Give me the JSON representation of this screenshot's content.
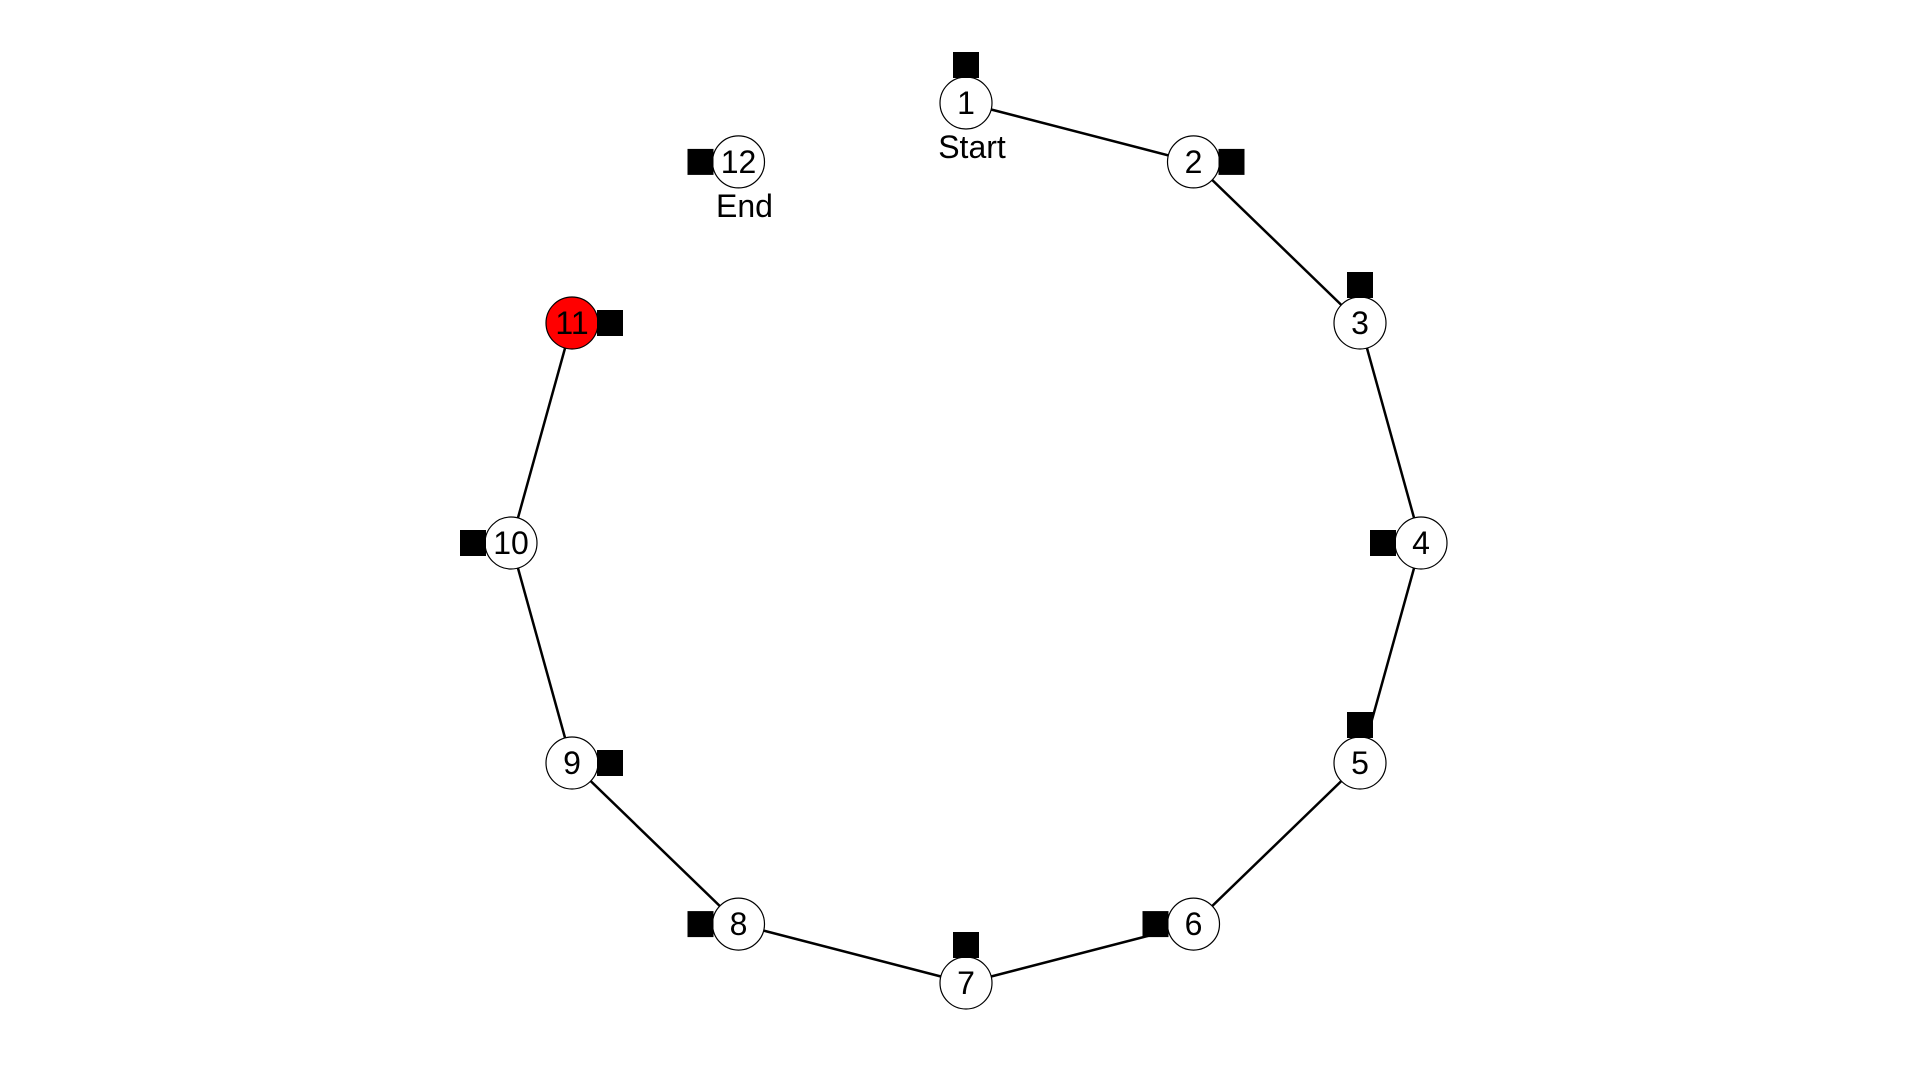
{
  "diagram": {
    "type": "ring-path",
    "colors": {
      "node_fill": "#ffffff",
      "highlight_fill": "#ff0000",
      "stroke": "#000000",
      "marker": "#000000"
    },
    "nodes": [
      {
        "id": 1,
        "label": "1",
        "caption": "Start",
        "highlight": false,
        "marker_side": "top"
      },
      {
        "id": 2,
        "label": "2",
        "caption": "",
        "highlight": false,
        "marker_side": "right"
      },
      {
        "id": 3,
        "label": "3",
        "caption": "",
        "highlight": false,
        "marker_side": "top"
      },
      {
        "id": 4,
        "label": "4",
        "caption": "",
        "highlight": false,
        "marker_side": "left"
      },
      {
        "id": 5,
        "label": "5",
        "caption": "",
        "highlight": false,
        "marker_side": "top"
      },
      {
        "id": 6,
        "label": "6",
        "caption": "",
        "highlight": false,
        "marker_side": "left"
      },
      {
        "id": 7,
        "label": "7",
        "caption": "",
        "highlight": false,
        "marker_side": "top"
      },
      {
        "id": 8,
        "label": "8",
        "caption": "",
        "highlight": false,
        "marker_side": "left"
      },
      {
        "id": 9,
        "label": "9",
        "caption": "",
        "highlight": false,
        "marker_side": "right"
      },
      {
        "id": 10,
        "label": "10",
        "caption": "",
        "highlight": false,
        "marker_side": "left"
      },
      {
        "id": 11,
        "label": "11",
        "caption": "",
        "highlight": true,
        "marker_side": "right"
      },
      {
        "id": 12,
        "label": "12",
        "caption": "End",
        "highlight": false,
        "marker_side": "left"
      }
    ],
    "edges": [
      {
        "from": 1,
        "to": 2
      },
      {
        "from": 2,
        "to": 3
      },
      {
        "from": 3,
        "to": 4
      },
      {
        "from": 4,
        "to": 5
      },
      {
        "from": 5,
        "to": 6
      },
      {
        "from": 6,
        "to": 7
      },
      {
        "from": 7,
        "to": 8
      },
      {
        "from": 8,
        "to": 9
      },
      {
        "from": 9,
        "to": 10
      },
      {
        "from": 10,
        "to": 11
      }
    ]
  }
}
